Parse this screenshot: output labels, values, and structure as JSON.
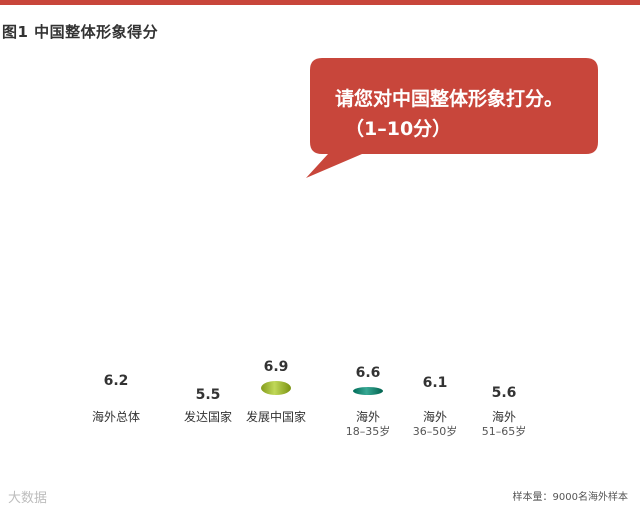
{
  "figure_title": "图1  中国整体形象得分",
  "question": {
    "line1": "请您对中国整体形象打分。",
    "line2": "（1–10分）"
  },
  "footnote": "样本量：9000名海外样本",
  "watermark": "大数据",
  "colors": {
    "accent": "#c8463b",
    "bars": [
      "#e2b02b",
      "#2f7bb0",
      "#a7bf3f",
      "#1f8f7b",
      "#d5337f",
      "#a8998b"
    ]
  },
  "chart_data": {
    "type": "bar",
    "categories": [
      [
        "海外总体"
      ],
      [
        "发达国家"
      ],
      [
        "发展中国家"
      ],
      [
        "海外",
        "18–35岁"
      ],
      [
        "海外",
        "36–50岁"
      ],
      [
        "海外",
        "51–65岁"
      ]
    ],
    "values": [
      6.2,
      5.5,
      6.9,
      6.6,
      6.1,
      5.6
    ],
    "value_labels": [
      "6.2",
      "5.5",
      "6.9",
      "6.6",
      "6.1",
      "5.6"
    ],
    "title": "图1  中国整体形象得分",
    "grid": false
  }
}
